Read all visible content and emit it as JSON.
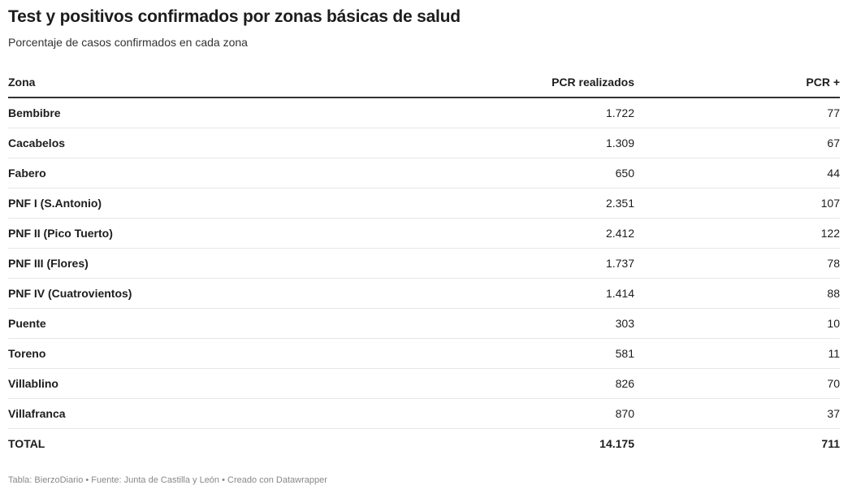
{
  "title": "Test y positivos confirmados por zonas básicas de salud",
  "subtitle": "Porcentaje de casos confirmados en cada zona",
  "footer": "Tabla: BierzoDiario • Fuente: Junta de Castilla y León • Creado con Datawrapper",
  "chart_data": {
    "type": "table",
    "columns": [
      "Zona",
      "PCR realizados",
      "PCR +"
    ],
    "rows": [
      {
        "zona": "Bembibre",
        "pcr": "1.722",
        "pos": "77"
      },
      {
        "zona": "Cacabelos",
        "pcr": "1.309",
        "pos": "67"
      },
      {
        "zona": "Fabero",
        "pcr": "650",
        "pos": "44"
      },
      {
        "zona": "PNF I (S.Antonio)",
        "pcr": "2.351",
        "pos": "107"
      },
      {
        "zona": "PNF II (Pico Tuerto)",
        "pcr": "2.412",
        "pos": "122"
      },
      {
        "zona": "PNF III (Flores)",
        "pcr": "1.737",
        "pos": "78"
      },
      {
        "zona": "PNF IV (Cuatrovientos)",
        "pcr": "1.414",
        "pos": "88"
      },
      {
        "zona": "Puente",
        "pcr": "303",
        "pos": "10"
      },
      {
        "zona": "Toreno",
        "pcr": "581",
        "pos": "11"
      },
      {
        "zona": "Villablino",
        "pcr": "826",
        "pos": "70"
      },
      {
        "zona": "Villafranca",
        "pcr": "870",
        "pos": "37"
      },
      {
        "zona": "TOTAL",
        "pcr": "14.175",
        "pos": "711"
      }
    ]
  }
}
